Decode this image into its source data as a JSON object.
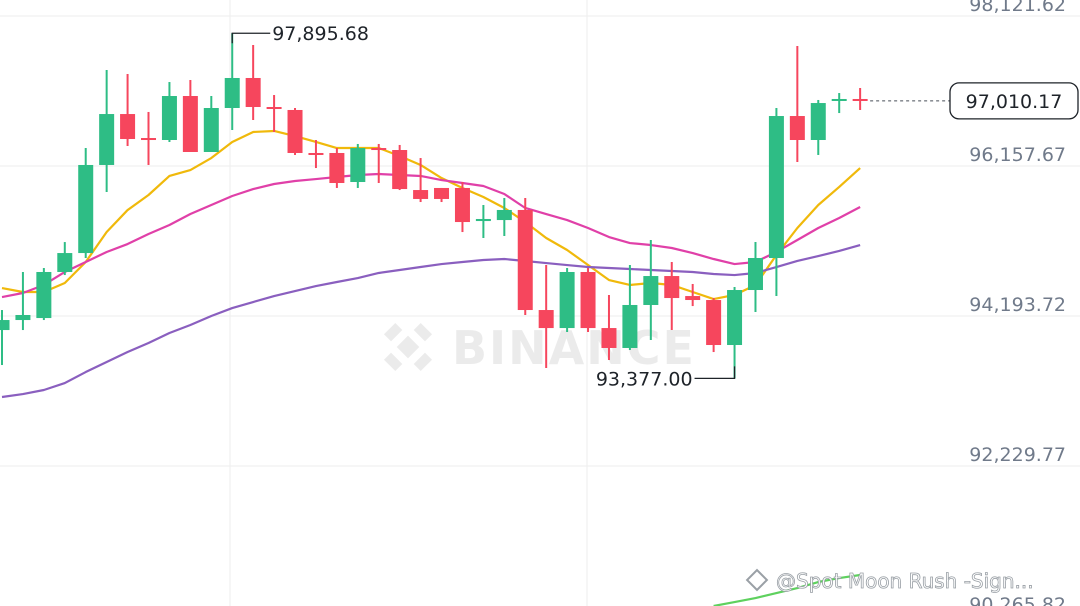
{
  "chart_data": {
    "type": "candlestick",
    "up_color": "#2ebd85",
    "down_color": "#f6465d",
    "open": [
      94010,
      94141,
      94167,
      94770,
      95018,
      96171,
      96838,
      96524,
      96498,
      97074,
      96341,
      96917,
      97310,
      96930,
      96891,
      96328,
      96328,
      95948,
      96393,
      96367,
      95843,
      95870,
      95870,
      95437,
      95450,
      95582,
      94272,
      94036,
      94770,
      94036,
      93775,
      94338,
      94717,
      94455,
      94403,
      93814,
      94534,
      94953,
      96812,
      96498,
      97009,
      97035
    ],
    "high": [
      94272,
      94770,
      94822,
      95162,
      96393,
      97414,
      97362,
      96865,
      97257,
      97284,
      97074,
      97895.68,
      97742,
      97087,
      96917,
      96498,
      96393,
      96446,
      96446,
      96433,
      96262,
      95870,
      95948,
      95647,
      95739,
      95739,
      94861,
      94822,
      94822,
      94469,
      94861,
      95189,
      94901,
      94613,
      94429,
      94573,
      95162,
      96917,
      97729,
      97022,
      97113,
      97179
    ],
    "low": [
      93552,
      94010,
      94141,
      94730,
      94953,
      95817,
      96419,
      96171,
      96472,
      96341,
      96341,
      96629,
      96760,
      96603,
      96302,
      96131,
      95870,
      95870,
      95935,
      95843,
      95686,
      95686,
      95293,
      95215,
      95241,
      94207,
      93513,
      93984,
      93984,
      93617,
      93748,
      93879,
      94010,
      94324,
      93722,
      93377,
      94246,
      94455,
      96210,
      96302,
      96851,
      96891
    ],
    "close": [
      94141,
      94207,
      94770,
      95018,
      96171,
      96838,
      96511,
      96498,
      97074,
      96341,
      96917,
      97310,
      96930,
      96904,
      96328,
      96302,
      95935,
      96393,
      96367,
      95856,
      95726,
      95726,
      95424,
      95464,
      95582,
      94272,
      94036,
      94770,
      94036,
      93775,
      94338,
      94717,
      94429,
      94403,
      93814,
      94534,
      94953,
      96812,
      96498,
      96982,
      97035,
      97010.17
    ],
    "overlays": [
      {
        "color": "#f0b90b",
        "values": [
          94560,
          94508,
          94508,
          94626,
          94901,
          95293,
          95581,
          95778,
          96027,
          96105,
          96262,
          96472,
          96603,
          96616,
          96550,
          96472,
          96393,
          96393,
          96393,
          96289,
          96171,
          96000,
          95870,
          95752,
          95608,
          95424,
          95215,
          95058,
          94861,
          94665,
          94600,
          94626,
          94600,
          94508,
          94416,
          94469,
          94600,
          94992,
          95346,
          95647,
          95883,
          96131
        ]
      },
      {
        "color": "#e040a8",
        "values": [
          94442,
          94495,
          94600,
          94770,
          94901,
          95032,
          95136,
          95267,
          95385,
          95529,
          95647,
          95765,
          95856,
          95922,
          95961,
          95987,
          96014,
          96040,
          96053,
          96040,
          96027,
          95974,
          95935,
          95896,
          95791,
          95608,
          95529,
          95450,
          95346,
          95228,
          95149,
          95123,
          95084,
          95018,
          94940,
          94874,
          94901,
          95032,
          95189,
          95346,
          95477,
          95621
        ]
      },
      {
        "color": "#8a5fbf",
        "values": [
          93133,
          93172,
          93225,
          93316,
          93460,
          93591,
          93722,
          93840,
          93971,
          94076,
          94194,
          94298,
          94377,
          94455,
          94521,
          94586,
          94639,
          94691,
          94757,
          94796,
          94835,
          94874,
          94901,
          94927,
          94940,
          94914,
          94887,
          94861,
          94835,
          94822,
          94809,
          94796,
          94783,
          94770,
          94744,
          94730,
          94757,
          94835,
          94914,
          94979,
          95045,
          95123
        ]
      },
      {
        "color": "#5ed15e",
        "values": [
          null,
          null,
          null,
          null,
          null,
          null,
          null,
          null,
          null,
          null,
          null,
          null,
          null,
          null,
          null,
          null,
          null,
          null,
          null,
          null,
          null,
          null,
          null,
          null,
          null,
          null,
          null,
          null,
          null,
          null,
          null,
          null,
          null,
          null,
          90397,
          90449,
          90501,
          90567,
          90632,
          90711,
          90763,
          90803
        ]
      }
    ],
    "ylim": [
      90397,
      98331
    ],
    "yticks": [
      {
        "value": 98121.62,
        "label": "98,121.62"
      },
      {
        "value": 96157.67,
        "label": "96,157.67"
      },
      {
        "value": 94193.72,
        "label": "94,193.72"
      },
      {
        "value": 92229.77,
        "label": "92,229.77"
      },
      {
        "value": 90265.82,
        "label": "90,265.82"
      }
    ],
    "grid": true,
    "high_label": {
      "value": 97895.68,
      "label": "97,895.68"
    },
    "low_label": {
      "value": 93377.0,
      "label": "93,377.00"
    },
    "last_price": {
      "value": 97010.17,
      "label": "97,010.17"
    },
    "watermark": "BINANCE",
    "credit": "@Spot Moon Rush -Sign..."
  }
}
